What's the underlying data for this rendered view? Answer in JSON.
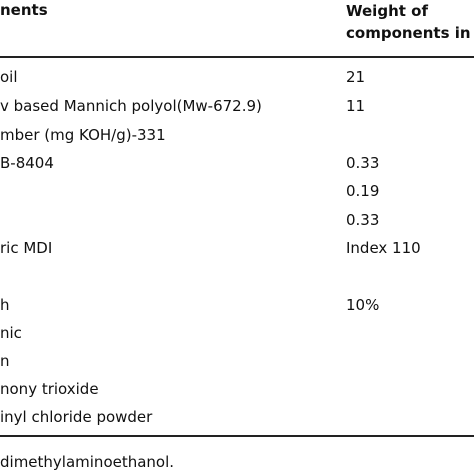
{
  "table": {
    "headers": {
      "col1": "nents",
      "col2_line1": "Weight of",
      "col2_line2": "components in"
    },
    "rows": [
      {
        "name": "oil",
        "value": "21"
      },
      {
        "name": "v based Mannich polyol(Mw-672.9)",
        "value": "11"
      },
      {
        "name": "mber (mg KOH/g)-331",
        "value": ""
      },
      {
        "name": "B-8404",
        "value": "0.33"
      },
      {
        "name": "",
        "value": "0.19"
      },
      {
        "name": "",
        "value": "0.33"
      },
      {
        "name": "ric MDI",
        "value": "Index 110"
      },
      {
        "name": "",
        "value": ""
      },
      {
        "name": "h",
        "value": "10%"
      },
      {
        "name": "nic",
        "value": ""
      },
      {
        "name": "n",
        "value": ""
      },
      {
        "name": "nony trioxide",
        "value": ""
      },
      {
        "name": "inyl chloride powder",
        "value": ""
      }
    ]
  },
  "footnote": "dimethylaminoethanol."
}
